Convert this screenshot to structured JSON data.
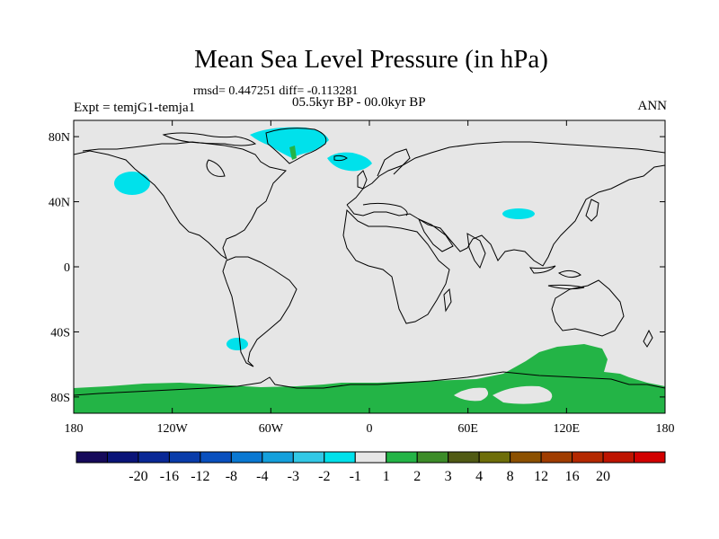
{
  "header": {
    "title": "Mean Sea Level Pressure (in hPa)",
    "stats": "rmsd= 0.447251 diff= -0.113281",
    "period": "05.5kyr BP - 00.0kyr BP",
    "experiment": "Expt = temjG1-temja1",
    "season": "ANN"
  },
  "map": {
    "projection": "cylindrical equidistant",
    "lon_range": [
      -180,
      180
    ],
    "lat_range": [
      -90,
      90
    ],
    "x_ticks": [
      {
        "lon": -180,
        "label": "180"
      },
      {
        "lon": -120,
        "label": "120W"
      },
      {
        "lon": -60,
        "label": "60W"
      },
      {
        "lon": 0,
        "label": "0"
      },
      {
        "lon": 60,
        "label": "60E"
      },
      {
        "lon": 120,
        "label": "120E"
      },
      {
        "lon": 180,
        "label": "180"
      }
    ],
    "y_ticks": [
      {
        "lat": 80,
        "label": "80N"
      },
      {
        "lat": 40,
        "label": "40N"
      },
      {
        "lat": 0,
        "label": "0"
      },
      {
        "lat": -40,
        "label": "40S"
      },
      {
        "lat": -80,
        "label": "80S"
      }
    ],
    "background_color": "#e6e6e6",
    "coast_color": "#000000"
  },
  "colorbar": {
    "colors": [
      "#160a5a",
      "#0a1478",
      "#0a2896",
      "#0a3caa",
      "#0a50be",
      "#0a78d2",
      "#14a0dc",
      "#32c8e6",
      "#00e1eb",
      "#e6e6e6",
      "#23b446",
      "#3c8c28",
      "#505a14",
      "#6e6e0a",
      "#8c5000",
      "#a03c00",
      "#b42800",
      "#be1400",
      "#d20000"
    ],
    "labels": [
      "-20",
      "-16",
      "-12",
      "-8",
      "-4",
      "-3",
      "-2",
      "-1",
      "1",
      "2",
      "3",
      "4",
      "8",
      "12",
      "16",
      "20"
    ]
  }
}
